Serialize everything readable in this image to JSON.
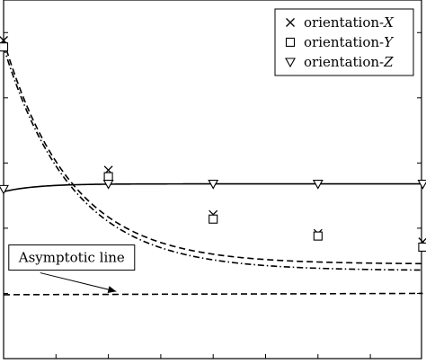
{
  "chart_data": {
    "type": "line",
    "title": "",
    "xlabel": "",
    "ylabel": "",
    "xlim": [
      0,
      7.75
    ],
    "ylim": [
      0.0,
      5.5
    ],
    "grid": false,
    "legend_position": "top-right",
    "legend": [
      {
        "text": "orientation-",
        "var": "X",
        "marker": "x"
      },
      {
        "text": "orientation-",
        "var": "Y",
        "marker": "square"
      },
      {
        "text": "orientation-",
        "var": "Z",
        "marker": "triangle-down"
      }
    ],
    "series": [
      {
        "name": "orientation-X",
        "marker": "x",
        "line_style": "dashed",
        "markers_x": [
          0,
          2,
          4,
          6,
          8
        ],
        "markers_y": [
          4.88,
          2.89,
          2.21,
          1.92,
          1.79
        ],
        "curve": {
          "asymptote": 1.45,
          "amplitude": 3.43,
          "rate": 0.78,
          "x_from": 0,
          "x_to": 8
        }
      },
      {
        "name": "orientation-Y",
        "marker": "square",
        "line_style": "dashdot",
        "markers_x": [
          0,
          2,
          4,
          6,
          8
        ],
        "markers_y": [
          4.78,
          2.79,
          2.14,
          1.88,
          1.71
        ],
        "curve": {
          "asymptote": 1.35,
          "amplitude": 3.43,
          "rate": 0.76,
          "x_from": 0,
          "x_to": 8
        }
      },
      {
        "name": "orientation-Z",
        "marker": "triangle-down",
        "line_style": "solid",
        "markers_x": [
          0,
          2,
          4,
          6,
          8
        ],
        "markers_y": [
          2.6,
          2.68,
          2.68,
          2.68,
          2.68
        ],
        "curve": {
          "asymptote": 2.68,
          "amplitude": -0.12,
          "rate": 1.6,
          "x_from": 0,
          "x_to": 8
        }
      },
      {
        "name": "asymptotic-line",
        "marker": "none",
        "line_style": "dashed",
        "markers_x": [],
        "markers_y": [],
        "line_points": [
          [
            0,
            0.98
          ],
          [
            8,
            1.0
          ]
        ]
      }
    ],
    "annotations": [
      {
        "text": "Asymptotic line",
        "box_x": 1.3,
        "box_y": 1.55,
        "arrow_to_x": 2.15,
        "arrow_to_y": 1.03
      }
    ]
  }
}
